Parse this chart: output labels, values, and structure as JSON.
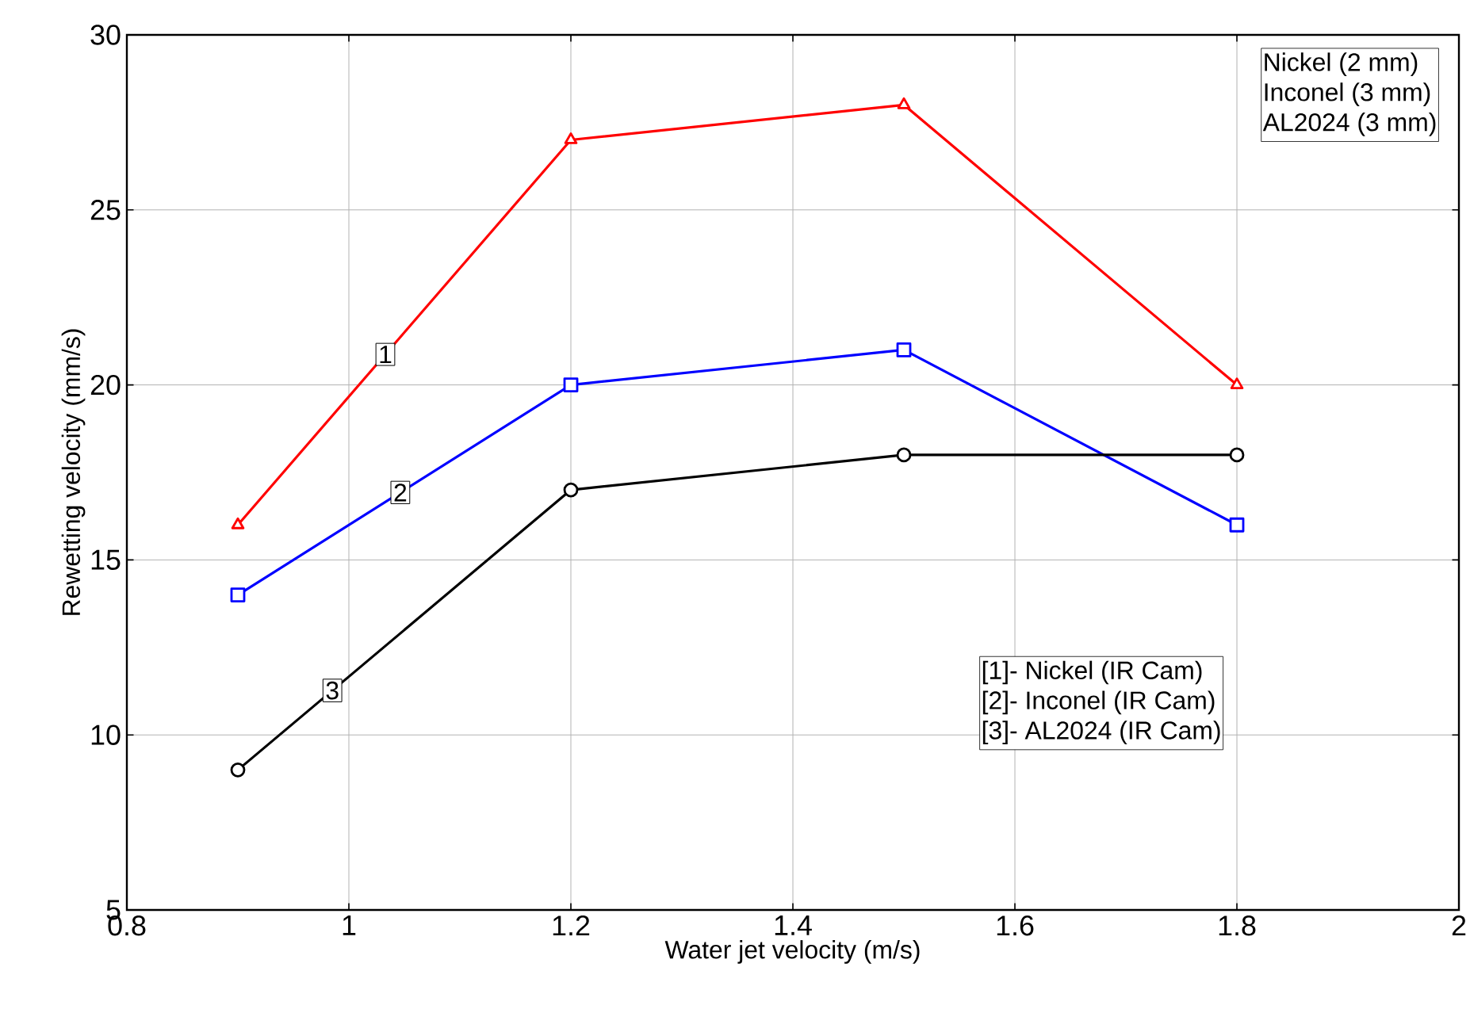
{
  "chart_data": {
    "type": "line",
    "xlabel": "Water jet velocity (m/s)",
    "ylabel": "Rewetting velocity (mm/s)",
    "x": [
      0.9,
      1.2,
      1.5,
      1.8
    ],
    "series": [
      {
        "name": "1",
        "color": "#ff0000",
        "marker": "triangle",
        "values": [
          16,
          27,
          28,
          20
        ]
      },
      {
        "name": "2",
        "color": "#0000ff",
        "marker": "square",
        "values": [
          14,
          20,
          21,
          16
        ]
      },
      {
        "name": "3",
        "color": "#000000",
        "marker": "circle",
        "values": [
          9,
          17,
          18,
          18
        ]
      }
    ],
    "xlim": [
      0.8,
      2
    ],
    "xticks": [
      0.8,
      1,
      1.2,
      1.4,
      1.6,
      1.8,
      2
    ],
    "ylim": [
      5,
      30
    ],
    "yticks": [
      5,
      10,
      15,
      20,
      25,
      30
    ],
    "grid": true,
    "line_style": "solid",
    "annotations": [
      "Nickel    (2 mm)",
      "Inconel  (3 mm)",
      "AL2024 (3 mm)",
      "[1]- Nickel  (IR Cam)",
      "[2]- Inconel (IR Cam)",
      "[3]- AL2024 (IR Cam)"
    ]
  }
}
